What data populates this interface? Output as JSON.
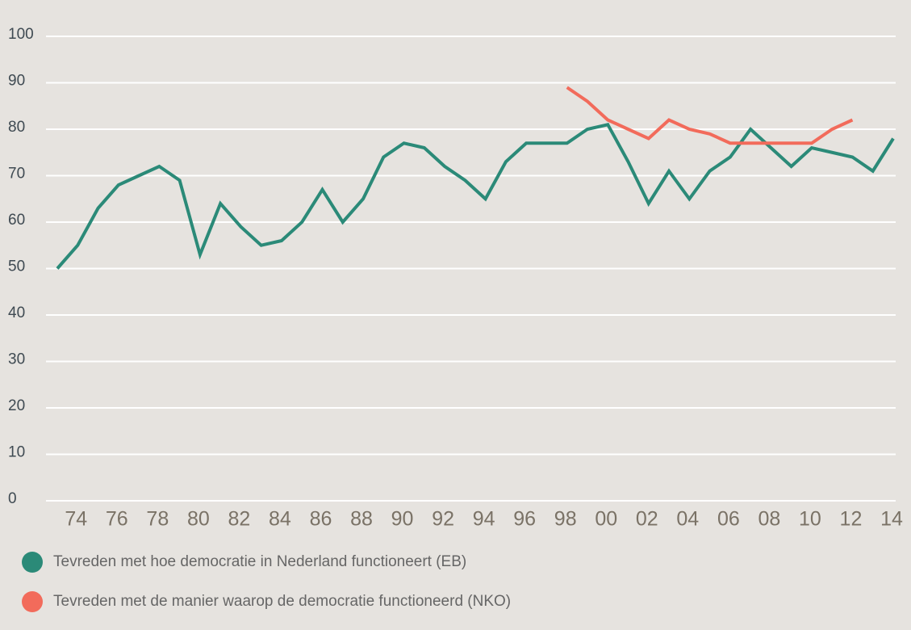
{
  "chart_data": {
    "type": "line",
    "categories": [
      null,
      "74",
      null,
      "76",
      null,
      "78",
      null,
      "80",
      null,
      "82",
      null,
      "84",
      null,
      "86",
      null,
      "88",
      null,
      "90",
      null,
      "92",
      null,
      "94",
      null,
      "96",
      null,
      "98",
      null,
      "00",
      null,
      "02",
      null,
      "04",
      null,
      "06",
      null,
      "08",
      null,
      "10",
      null,
      "12",
      null,
      "14"
    ],
    "series": [
      {
        "name": "Tevreden met hoe democratie in Nederland functioneert (EB)",
        "color": "#2b8a78",
        "values": [
          50,
          55,
          63,
          68,
          70,
          72,
          69,
          53,
          64,
          59,
          55,
          56,
          60,
          67,
          60,
          65,
          74,
          77,
          76,
          72,
          69,
          65,
          73,
          77,
          77,
          77,
          80,
          81,
          73,
          64,
          71,
          65,
          71,
          74,
          80,
          76,
          72,
          76,
          75,
          74,
          71,
          78
        ]
      },
      {
        "name": "Tevreden met de manier waarop de democratie functioneerd (NKO)",
        "color": "#f26b5b",
        "values": [
          null,
          null,
          null,
          null,
          null,
          null,
          null,
          null,
          null,
          null,
          null,
          null,
          null,
          null,
          null,
          null,
          null,
          null,
          null,
          null,
          null,
          null,
          null,
          null,
          null,
          89,
          86,
          82,
          80,
          78,
          82,
          80,
          79,
          77,
          77,
          77,
          77,
          77,
          80,
          82,
          null,
          null
        ]
      }
    ],
    "ylim": [
      0,
      100
    ],
    "yticks": [
      0,
      10,
      20,
      30,
      40,
      50,
      60,
      70,
      80,
      90,
      100
    ],
    "grid": true
  }
}
